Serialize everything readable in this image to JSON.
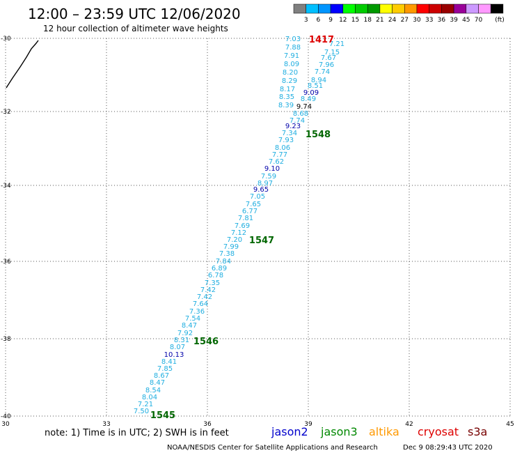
{
  "header": {
    "title": "12:00 – 23:59 UTC 12/06/2020",
    "subtitle": "12 hour collection of altimeter wave heights"
  },
  "legend": {
    "labels": [
      "3",
      "6",
      "9",
      "12",
      "15",
      "18",
      "21",
      "24",
      "27",
      "30",
      "33",
      "36",
      "39",
      "45",
      "70"
    ],
    "unit": "(ft)",
    "colors": [
      "#808080",
      "#00bfff",
      "#0095ff",
      "#0000ff",
      "#00ff00",
      "#00cc00",
      "#009900",
      "#ffff00",
      "#ffcc00",
      "#ff9900",
      "#ff0000",
      "#cc0000",
      "#990000",
      "#990099",
      "#cc99ff",
      "#ff99ff",
      "#000000"
    ]
  },
  "map": {
    "lon_ticks": [
      "30",
      "33",
      "36",
      "39",
      "42",
      "45"
    ],
    "lat_ticks": [
      "-30",
      "-32",
      "-34",
      "-36",
      "-38",
      "-40"
    ],
    "lon_range": [
      30,
      45
    ],
    "lat_range": [
      -40,
      -30
    ],
    "grid": true,
    "swh_points": [
      {
        "label": "7.03",
        "color": "#1faee0"
      },
      {
        "label": "7.88",
        "color": "#1faee0"
      },
      {
        "label": "7.91",
        "color": "#1faee0"
      },
      {
        "label": "8.09",
        "color": "#1faee0"
      },
      {
        "label": "8.20",
        "color": "#1faee0"
      },
      {
        "label": "8.29",
        "color": "#1faee0"
      },
      {
        "label": "8.17",
        "color": "#1faee0"
      },
      {
        "label": "8.35",
        "color": "#1faee0"
      },
      {
        "label": "8.39",
        "color": "#1faee0"
      },
      {
        "label": "7.21",
        "color": "#1faee0"
      },
      {
        "label": "7.15",
        "color": "#1faee0"
      },
      {
        "label": "7.67",
        "color": "#1faee0"
      },
      {
        "label": "7.96",
        "color": "#1faee0"
      },
      {
        "label": "7.74",
        "color": "#1faee0"
      },
      {
        "label": "8.94",
        "color": "#1faee0"
      },
      {
        "label": "8.51",
        "color": "#1faee0"
      },
      {
        "label": "9.09",
        "color": "#0000aa"
      },
      {
        "label": "8.49",
        "color": "#1faee0"
      },
      {
        "label": "9.74",
        "color": "#000000"
      },
      {
        "label": "8.68",
        "color": "#1faee0"
      },
      {
        "label": "7.74",
        "color": "#1faee0"
      },
      {
        "label": "9.23",
        "color": "#0000aa"
      },
      {
        "label": "7.34",
        "color": "#1faee0"
      },
      {
        "label": "7.93",
        "color": "#1faee0"
      },
      {
        "label": "8.06",
        "color": "#1faee0"
      },
      {
        "label": "7.77",
        "color": "#1faee0"
      },
      {
        "label": "7.62",
        "color": "#1faee0"
      },
      {
        "label": "9.10",
        "color": "#0000aa"
      },
      {
        "label": "7.59",
        "color": "#1faee0"
      },
      {
        "label": "8.97",
        "color": "#1faee0"
      },
      {
        "label": "9.65",
        "color": "#0000aa"
      },
      {
        "label": "7.05",
        "color": "#1faee0"
      },
      {
        "label": "7.65",
        "color": "#1faee0"
      },
      {
        "label": "6.77",
        "color": "#1faee0"
      },
      {
        "label": "7.81",
        "color": "#1faee0"
      },
      {
        "label": "7.69",
        "color": "#1faee0"
      },
      {
        "label": "7.12",
        "color": "#1faee0"
      },
      {
        "label": "7.20",
        "color": "#1faee0"
      },
      {
        "label": "7.99",
        "color": "#1faee0"
      },
      {
        "label": "7.38",
        "color": "#1faee0"
      },
      {
        "label": "7.84",
        "color": "#1faee0"
      },
      {
        "label": "6.89",
        "color": "#1faee0"
      },
      {
        "label": "6.78",
        "color": "#1faee0"
      },
      {
        "label": "7.35",
        "color": "#1faee0"
      },
      {
        "label": "7.42",
        "color": "#1faee0"
      },
      {
        "label": "7.42",
        "color": "#1faee0"
      },
      {
        "label": "7.64",
        "color": "#1faee0"
      },
      {
        "label": "7.36",
        "color": "#1faee0"
      },
      {
        "label": "7.54",
        "color": "#1faee0"
      },
      {
        "label": "8.47",
        "color": "#1faee0"
      },
      {
        "label": "7.92",
        "color": "#1faee0"
      },
      {
        "label": "8.31",
        "color": "#1faee0"
      },
      {
        "label": "8.07",
        "color": "#1faee0"
      },
      {
        "label": "10.13",
        "color": "#0000aa"
      },
      {
        "label": "8.41",
        "color": "#1faee0"
      },
      {
        "label": "7.85",
        "color": "#1faee0"
      },
      {
        "label": "8.67",
        "color": "#1faee0"
      },
      {
        "label": "8.47",
        "color": "#1faee0"
      },
      {
        "label": "8.54",
        "color": "#1faee0"
      },
      {
        "label": "8.04",
        "color": "#1faee0"
      },
      {
        "label": "7.21",
        "color": "#1faee0"
      },
      {
        "label": "7.50",
        "color": "#1faee0"
      }
    ],
    "times": [
      {
        "label": "1417",
        "color": "#dd0000"
      },
      {
        "label": "1548",
        "color": "#006600"
      },
      {
        "label": "1547",
        "color": "#006600"
      },
      {
        "label": "1546",
        "color": "#006600"
      },
      {
        "label": "1545",
        "color": "#006600"
      }
    ]
  },
  "footer": {
    "note": "note: 1) Time is in UTC; 2) SWH is in feet",
    "satellites": [
      {
        "label": "jason2",
        "color": "#0000cc"
      },
      {
        "label": "jason3",
        "color": "#008800"
      },
      {
        "label": "altika",
        "color": "#ff9900"
      },
      {
        "label": "cryosat",
        "color": "#dd0000"
      },
      {
        "label": "s3a",
        "color": "#770000"
      }
    ],
    "credit": "NOAA/NESDIS Center for Satellite Applications and Research",
    "timestamp": "Dec  9 08:29:43 UTC 2020"
  }
}
